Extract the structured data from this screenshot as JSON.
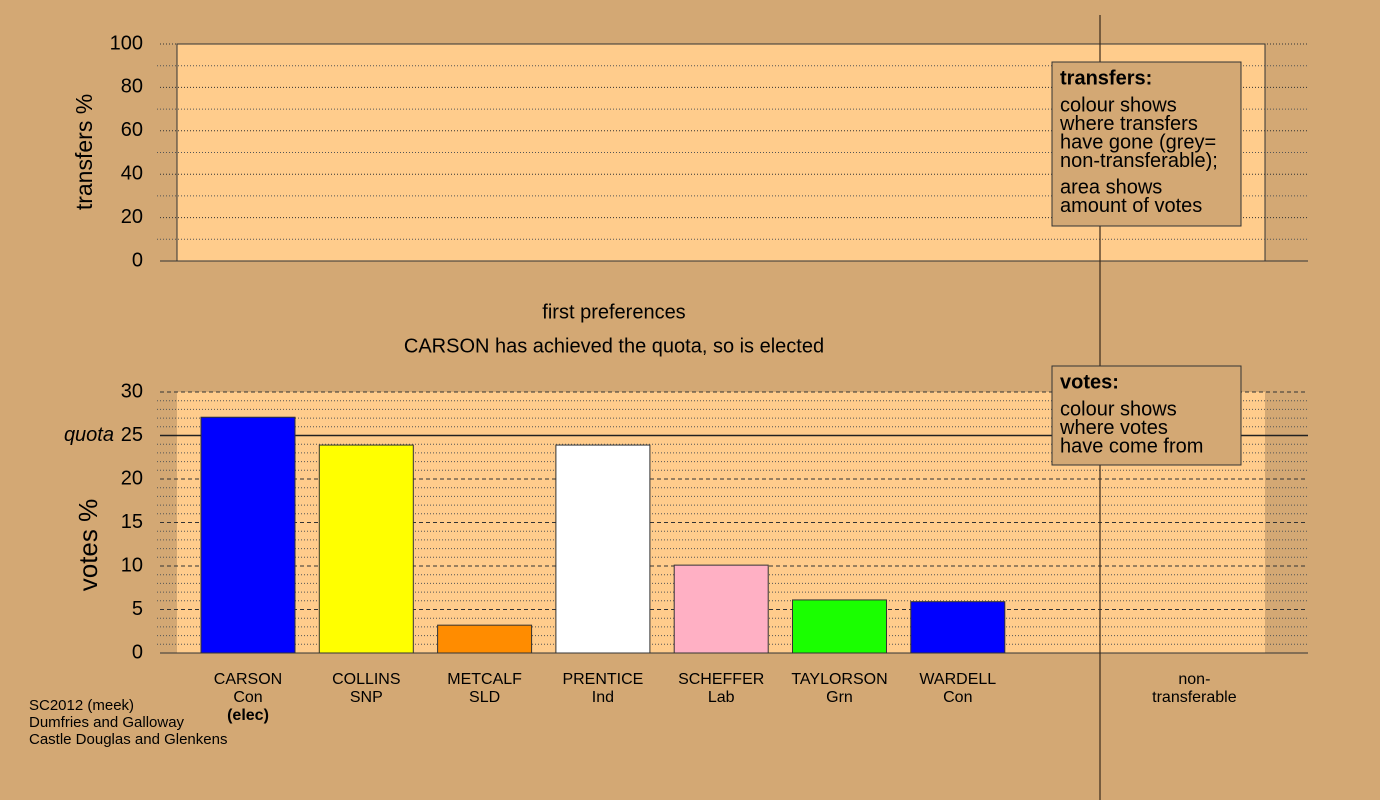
{
  "chart_data": [
    {
      "type": "bar",
      "ylabel": "transfers %",
      "values": [],
      "ylim": [
        0,
        100
      ],
      "yticks": [
        0,
        20,
        40,
        60,
        80,
        100
      ],
      "minor_yticks": [
        10,
        30,
        50,
        70,
        90
      ],
      "legend": {
        "title": "transfers:",
        "paragraphs": [
          [
            "colour shows",
            "where transfers",
            "have gone (grey=",
            "non-transferable);"
          ],
          [
            "area shows",
            "amount of votes"
          ]
        ]
      }
    },
    {
      "type": "bar",
      "title": "first preferences",
      "subtitle": "CARSON has achieved the quota, so is elected",
      "ylabel": "votes %",
      "categories": [
        "CARSON",
        "COLLINS",
        "METCALF",
        "PRENTICE",
        "SCHEFFER",
        "TAYLORSON",
        "WARDELL"
      ],
      "parties": [
        "Con",
        "SNP",
        "SLD",
        "Ind",
        "Lab",
        "Grn",
        "Con"
      ],
      "status_labels": [
        "(elec)",
        null,
        null,
        null,
        null,
        null,
        null
      ],
      "values": [
        27.1,
        23.9,
        3.2,
        23.9,
        10.1,
        6.1,
        5.9
      ],
      "colors": [
        "#0000ff",
        "#ffff00",
        "#ff8c00",
        "#ffffff",
        "#ffb0c4",
        "#1aff00",
        "#0000ff"
      ],
      "extra_category": [
        "non-",
        "transferable"
      ],
      "ylim": [
        0,
        30
      ],
      "yticks": [
        0,
        5,
        10,
        15,
        20,
        25,
        30
      ],
      "minor_yticks": [
        1,
        2,
        3,
        4,
        6,
        7,
        8,
        9,
        11,
        12,
        13,
        14,
        16,
        17,
        18,
        19,
        21,
        22,
        23,
        24,
        26,
        27,
        28,
        29
      ],
      "quota": {
        "value": 25,
        "label": "quota"
      },
      "legend": {
        "title": "votes:",
        "paragraphs": [
          [
            "colour shows",
            "where votes",
            "have come from"
          ]
        ]
      }
    }
  ],
  "footer": [
    "SC2012 (meek)",
    "Dumfries and Galloway",
    "Castle Douglas and Glenkens"
  ]
}
